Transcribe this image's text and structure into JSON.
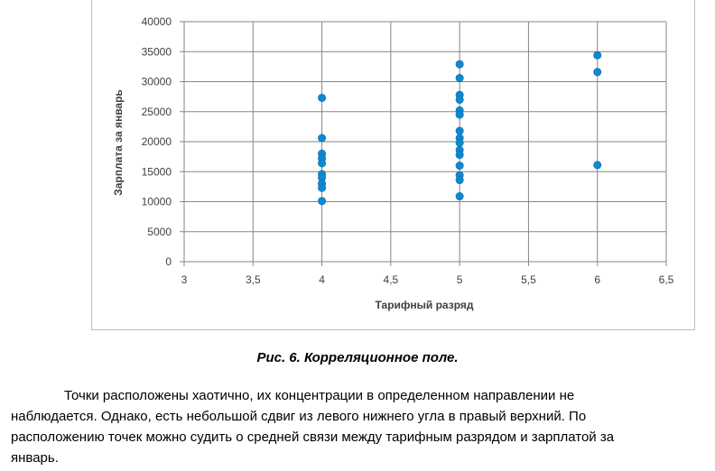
{
  "chart_data": {
    "type": "scatter",
    "title": "",
    "xlabel": "Тарифный разряд",
    "ylabel": "Зарплата за январь",
    "xlim": [
      3,
      6.5
    ],
    "ylim": [
      0,
      40000
    ],
    "grid": true,
    "x_ticks": [
      "3",
      "3,5",
      "4",
      "4,5",
      "5",
      "5,5",
      "6",
      "6,5"
    ],
    "x_tick_values": [
      3,
      3.5,
      4,
      4.5,
      5,
      5.5,
      6,
      6.5
    ],
    "y_ticks": [
      "0",
      "5000",
      "10000",
      "15000",
      "20000",
      "25000",
      "30000",
      "35000",
      "40000"
    ],
    "y_tick_values": [
      0,
      5000,
      10000,
      15000,
      20000,
      25000,
      30000,
      35000,
      40000
    ],
    "marker_color": "#0e89cf",
    "points": [
      {
        "x": 4,
        "y": 27300
      },
      {
        "x": 4,
        "y": 20600
      },
      {
        "x": 4,
        "y": 18000
      },
      {
        "x": 4,
        "y": 17200
      },
      {
        "x": 4,
        "y": 16400
      },
      {
        "x": 4,
        "y": 14600
      },
      {
        "x": 4,
        "y": 14000
      },
      {
        "x": 4,
        "y": 13000
      },
      {
        "x": 4,
        "y": 12300
      },
      {
        "x": 4,
        "y": 10100
      },
      {
        "x": 5,
        "y": 32900
      },
      {
        "x": 5,
        "y": 30600
      },
      {
        "x": 5,
        "y": 27800
      },
      {
        "x": 5,
        "y": 27000
      },
      {
        "x": 5,
        "y": 25200
      },
      {
        "x": 5,
        "y": 24500
      },
      {
        "x": 5,
        "y": 21800
      },
      {
        "x": 5,
        "y": 20600
      },
      {
        "x": 5,
        "y": 19800
      },
      {
        "x": 5,
        "y": 18600
      },
      {
        "x": 5,
        "y": 17800
      },
      {
        "x": 5,
        "y": 16000
      },
      {
        "x": 5,
        "y": 14400
      },
      {
        "x": 5,
        "y": 13600
      },
      {
        "x": 5,
        "y": 10900
      },
      {
        "x": 6,
        "y": 34400
      },
      {
        "x": 6,
        "y": 31600
      },
      {
        "x": 6,
        "y": 16100
      }
    ]
  },
  "caption": "Рис. 6. Корреляционное поле.",
  "paragraph_lines": [
    "Точки расположены хаотично, их концентрации в определенном направлении не",
    "наблюдается. Однако, есть небольшой сдвиг из левого нижнего угла в правый верхний. По",
    "расположению точек можно судить о средней связи между тарифным разрядом и зарплатой за",
    "январь."
  ]
}
